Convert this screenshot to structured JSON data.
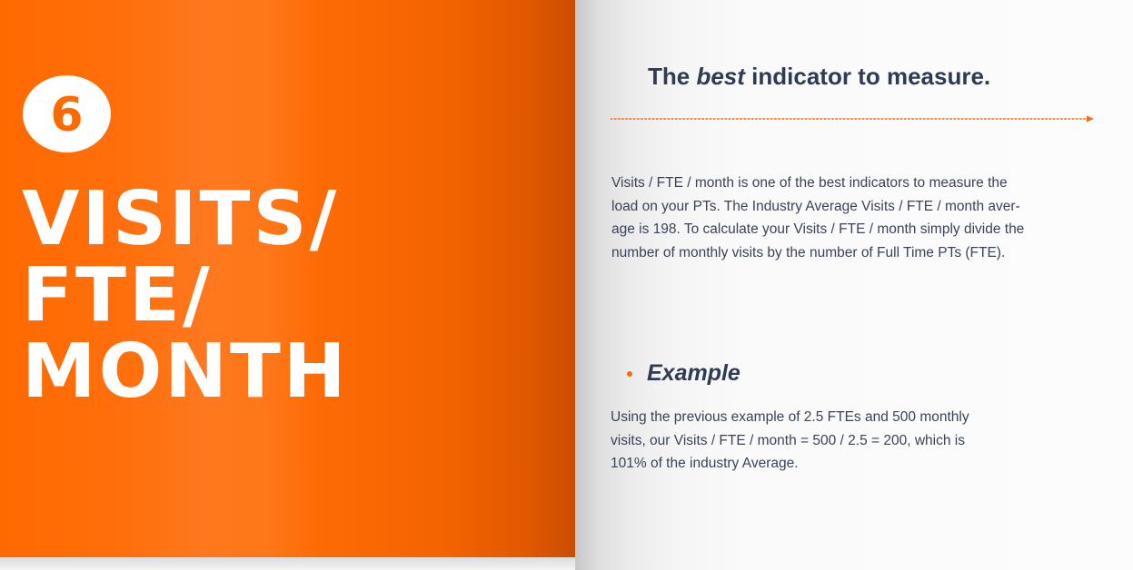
{
  "left_page": {
    "number": "6",
    "title_lines": [
      "VISITS/",
      "FTE/",
      "MONTH"
    ]
  },
  "right_page": {
    "headline": {
      "before": "The",
      "emphasis": "best",
      "after": "indicator to measure."
    },
    "paragraph_lines": [
      "Visits / FTE / month is one of the best indicators to measure the",
      "load on your PTs. The Industry Average Visits / FTE / month aver-",
      "age is 198. To calculate your Visits / FTE / month simply divide the",
      "number of monthly visits by the number of Full Time PTs (FTE)."
    ],
    "example": {
      "heading": "Example",
      "lines": [
        "Using the previous example of 2.5 FTEs and 500 monthly",
        "visits, our Visits / FTE / month = 500 / 2.5 = 200, which is",
        "101% of the industry Average."
      ]
    }
  },
  "colors": {
    "brand_orange": "#ff6a00",
    "heading_navy": "#2e3b52",
    "body_text": "#3a4358",
    "accent_dot": "#f26a1b"
  }
}
